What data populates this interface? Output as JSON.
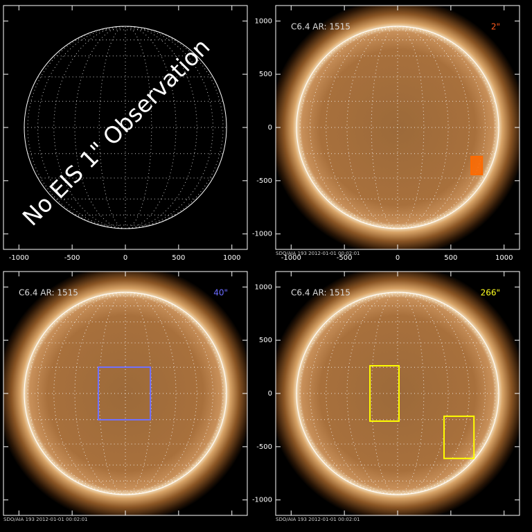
{
  "chart_data": [
    {
      "type": "image",
      "annotation": "No EIS 1\" Observation",
      "xlim": [
        -1145,
        1145
      ],
      "ylim": [
        -1145,
        1145
      ],
      "xticks": [
        -1000,
        -500,
        0,
        500,
        1000
      ],
      "yticks": [
        -1000,
        -500,
        0,
        500,
        1000
      ],
      "tick_labels": "x"
    },
    {
      "type": "image",
      "sun": true,
      "title": "C6.4 AR: 1515",
      "label": "2\"",
      "label_color": "#ff5a1e",
      "box_color": "#ff6a00",
      "boxes": [
        {
          "x": [
            690,
            795
          ],
          "y": [
            -442,
            -273
          ]
        }
      ],
      "xlim": [
        -1145,
        1145
      ],
      "ylim": [
        -1145,
        1145
      ],
      "xticks": [
        -1000,
        -500,
        0,
        500,
        1000
      ],
      "yticks": [
        -1000,
        -500,
        0,
        500,
        1000
      ],
      "tick_labels": "xy",
      "footer": "SDO/AIA 193   2012-01-01 00:02:01"
    },
    {
      "type": "image",
      "sun": true,
      "title": "C6.4 AR: 1515",
      "label": "40\"",
      "label_color": "#6b6bff",
      "box_color": "#7070ff",
      "boxes": [
        {
          "x": [
            -254,
            235
          ],
          "y": [
            -247,
            247
          ]
        }
      ],
      "xlim": [
        -1145,
        1145
      ],
      "ylim": [
        -1145,
        1145
      ],
      "xticks": [
        -1000,
        -500,
        0,
        500,
        1000
      ],
      "yticks": [
        -1000,
        -500,
        0,
        500,
        1000
      ],
      "tick_labels": "",
      "footer": "SDO/AIA 193   2012-01-01 00:02:01"
    },
    {
      "type": "image",
      "sun": true,
      "title": "C6.4 AR: 1515",
      "label": "266\"",
      "label_color": "#ffff20",
      "box_color": "#ffff00",
      "boxes": [
        {
          "x": [
            -260,
            13
          ],
          "y": [
            -260,
            260
          ]
        },
        {
          "x": [
            436,
            717
          ],
          "y": [
            -610,
            -214
          ]
        }
      ],
      "xlim": [
        -1145,
        1145
      ],
      "ylim": [
        -1145,
        1145
      ],
      "xticks": [
        -1000,
        -500,
        0,
        500,
        1000
      ],
      "yticks": [
        -1000,
        -500,
        0,
        500,
        1000
      ],
      "tick_labels": "y",
      "footer": "SDO/AIA 193   2012-01-01 00:02:01"
    }
  ]
}
